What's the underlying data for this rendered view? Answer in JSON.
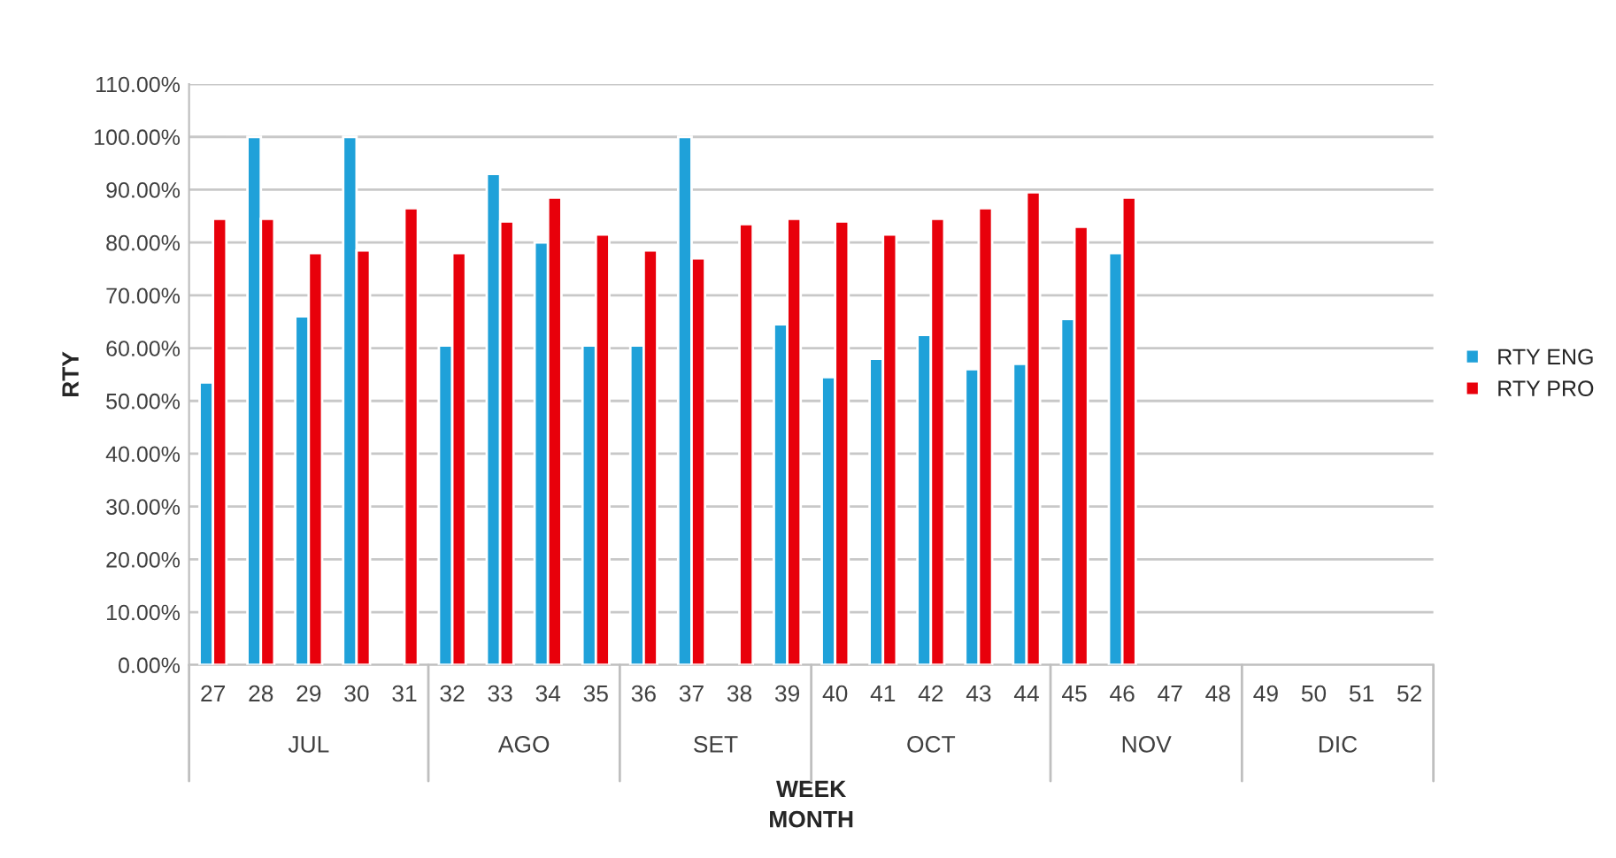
{
  "chart_data": {
    "type": "bar",
    "ylabel": "RTY",
    "xlabel": "WEEK\nMONTH",
    "categories": [
      "27",
      "28",
      "29",
      "30",
      "31",
      "32",
      "33",
      "34",
      "35",
      "36",
      "37",
      "38",
      "39",
      "40",
      "41",
      "42",
      "43",
      "44",
      "45",
      "46",
      "47",
      "48",
      "49",
      "50",
      "51",
      "52"
    ],
    "series": [
      {
        "name": "RTY ENG",
        "color": "#1fa1d9",
        "values": [
          53.5,
          100,
          66,
          100,
          null,
          60.5,
          93,
          80,
          60.5,
          60.5,
          100,
          null,
          64.5,
          54.5,
          58,
          62.5,
          56,
          57,
          65.5,
          78,
          null,
          null,
          null,
          null,
          null,
          null
        ]
      },
      {
        "name": "RTY PRO",
        "color": "#e8000b",
        "values": [
          84.5,
          84.5,
          78,
          78.5,
          86.5,
          78,
          84,
          88.5,
          81.5,
          78.5,
          77,
          83.5,
          84.5,
          84,
          81.5,
          84.5,
          86.5,
          89.5,
          83,
          88.5,
          null,
          null,
          null,
          null,
          null,
          null
        ]
      }
    ],
    "ylim": [
      0,
      110
    ],
    "yticks": [
      {
        "value": 0,
        "label": "0.00%"
      },
      {
        "value": 10,
        "label": "10.00%"
      },
      {
        "value": 20,
        "label": "20.00%"
      },
      {
        "value": 30,
        "label": "30.00%"
      },
      {
        "value": 40,
        "label": "40.00%"
      },
      {
        "value": 50,
        "label": "50.00%"
      },
      {
        "value": 60,
        "label": "60.00%"
      },
      {
        "value": 70,
        "label": "70.00%"
      },
      {
        "value": 80,
        "label": "80.00%"
      },
      {
        "value": 90,
        "label": "90.00%"
      },
      {
        "value": 100,
        "label": "100.00%"
      },
      {
        "value": 110,
        "label": "110.00%"
      }
    ],
    "annotations": [
      "JUL",
      "AGO",
      "SET",
      "OCT",
      "NOV",
      "DIC"
    ],
    "grid": "y",
    "legend": "right"
  }
}
